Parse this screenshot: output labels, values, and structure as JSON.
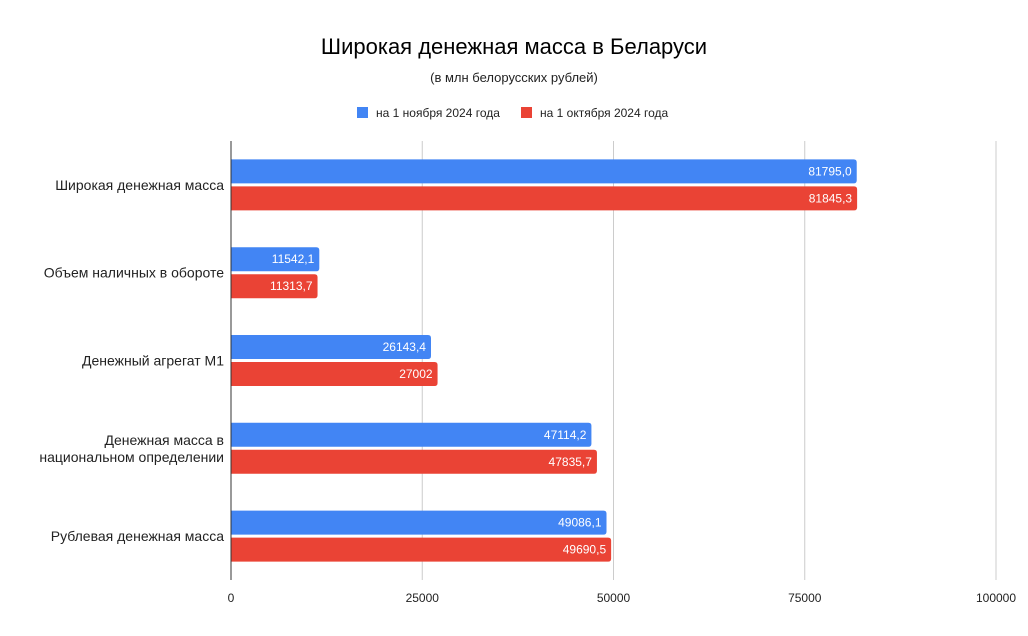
{
  "chart_data": {
    "type": "bar",
    "orientation": "horizontal",
    "title": "Широкая денежная масса в Беларуси",
    "subtitle": "(в млн белорусских рублей)",
    "categories": [
      [
        "Широкая денежная масса"
      ],
      [
        "Объем наличных в обороте"
      ],
      [
        "Денежный агрегат М1"
      ],
      [
        "Денежная масса в",
        "национальном определении"
      ],
      [
        "Рублевая денежная масса"
      ]
    ],
    "series": [
      {
        "name": "на 1 ноября 2024 года",
        "color": "#4285F4",
        "values": [
          81795.0,
          11542.1,
          26143.4,
          47114.2,
          49086.1
        ],
        "labels": [
          "81795,0",
          "11542,1",
          "26143,4",
          "47114,2",
          "49086,1"
        ]
      },
      {
        "name": "на 1 октября 2024 года",
        "color": "#EA4335",
        "values": [
          81845.3,
          11313.7,
          27002,
          47835.7,
          49690.5
        ],
        "labels": [
          "81845,3",
          "11313,7",
          "27002",
          "47835,7",
          "49690,5"
        ]
      }
    ],
    "xlim": [
      0,
      100000
    ],
    "xticks": [
      0,
      25000,
      50000,
      75000,
      100000
    ],
    "xtick_labels": [
      "0",
      "25000",
      "50000",
      "75000",
      "100000"
    ],
    "grid": true,
    "legend_position": "top"
  }
}
